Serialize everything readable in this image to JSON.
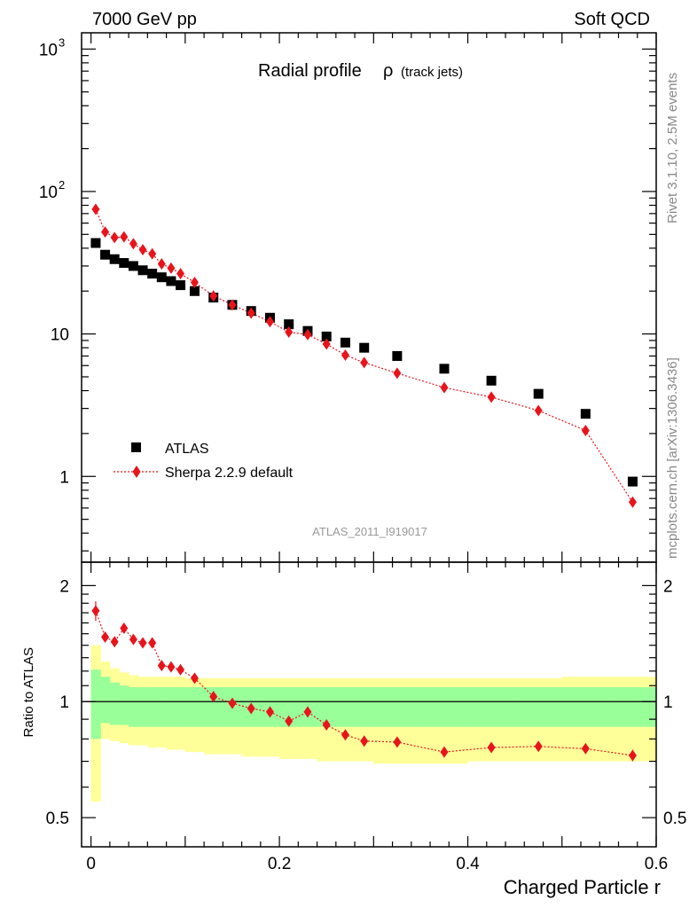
{
  "header": {
    "left": "7000 GeV pp",
    "right": "Soft QCD"
  },
  "side_text": {
    "rivet": "Rivet 3.1.10,  2.5M events",
    "mcplots": "mcplots.cern.ch [arXiv:1306.3436]"
  },
  "chart_data": {
    "type": "scatter",
    "title": "Radial profile",
    "title_symbol": "ρ",
    "title_suffix": "(track jets)",
    "analysis_tag": "ATLAS_2011_I919017",
    "xlabel": "Charged Particle r",
    "ylabel_ratio": "Ratio to ATLAS",
    "xlim": [
      -0.01,
      0.6
    ],
    "ylim_main": [
      0.25,
      1300
    ],
    "ylim_ratio": [
      0.42,
      2.3
    ],
    "yscale": "log",
    "x_ticks": [
      "0",
      "0.2",
      "0.4",
      "0.6"
    ],
    "x_tick_values": [
      0,
      0.2,
      0.4,
      0.6
    ],
    "main_y_ticks": [
      {
        "value": 1,
        "label": "1",
        "exp": ""
      },
      {
        "value": 10,
        "label": "10",
        "exp": ""
      },
      {
        "value": 100,
        "label": "10",
        "exp": "2"
      },
      {
        "value": 1000,
        "label": "10",
        "exp": "3"
      }
    ],
    "ratio_y_ticks": [
      {
        "value": 0.5,
        "label": "0.5"
      },
      {
        "value": 1,
        "label": "1"
      },
      {
        "value": 2,
        "label": "2"
      }
    ],
    "legend": {
      "position": "lower-left",
      "entries": [
        "ATLAS",
        "Sherpa 2.2.9 default"
      ]
    },
    "series": [
      {
        "name": "ATLAS",
        "marker": "square",
        "color": "#000000",
        "x": [
          0.005,
          0.015,
          0.025,
          0.035,
          0.045,
          0.055,
          0.065,
          0.075,
          0.085,
          0.095,
          0.11,
          0.13,
          0.15,
          0.17,
          0.19,
          0.21,
          0.23,
          0.25,
          0.27,
          0.29,
          0.325,
          0.375,
          0.425,
          0.475,
          0.525,
          0.575
        ],
        "y": [
          43.5,
          36,
          33.5,
          31.5,
          30,
          28,
          26.5,
          25,
          23.5,
          22,
          20,
          18,
          16,
          14.5,
          13,
          11.7,
          10.5,
          9.6,
          8.7,
          8.0,
          7.0,
          5.7,
          4.7,
          3.8,
          2.75,
          0.92
        ]
      },
      {
        "name": "Sherpa 2.2.9 default",
        "marker": "diamond",
        "color": "#e8141b",
        "x": [
          0.005,
          0.015,
          0.025,
          0.035,
          0.045,
          0.055,
          0.065,
          0.075,
          0.085,
          0.095,
          0.11,
          0.13,
          0.15,
          0.17,
          0.19,
          0.21,
          0.23,
          0.25,
          0.27,
          0.29,
          0.325,
          0.375,
          0.425,
          0.475,
          0.525,
          0.575
        ],
        "y": [
          75,
          52,
          47.5,
          48,
          43,
          39,
          36.5,
          31,
          29,
          26.5,
          23,
          18.5,
          16,
          14,
          12.2,
          10.3,
          9.9,
          8.5,
          7.1,
          6.3,
          5.3,
          4.2,
          3.6,
          2.9,
          2.1,
          0.66
        ]
      }
    ],
    "ratio": {
      "x": [
        0.005,
        0.015,
        0.025,
        0.035,
        0.045,
        0.055,
        0.065,
        0.075,
        0.085,
        0.095,
        0.11,
        0.13,
        0.15,
        0.17,
        0.19,
        0.21,
        0.23,
        0.25,
        0.27,
        0.29,
        0.325,
        0.375,
        0.425,
        0.475,
        0.525,
        0.575
      ],
      "y": [
        1.72,
        1.47,
        1.43,
        1.55,
        1.45,
        1.42,
        1.42,
        1.24,
        1.23,
        1.21,
        1.15,
        1.03,
        0.99,
        0.96,
        0.94,
        0.89,
        0.94,
        0.87,
        0.82,
        0.79,
        0.785,
        0.74,
        0.76,
        0.765,
        0.755,
        0.725
      ],
      "err": [
        0.1,
        0.04,
        0.04,
        0.04,
        0.03,
        0.03,
        0.03,
        0.025,
        0.02,
        0.02,
        0.02,
        0.01,
        0.01,
        0.01,
        0.01,
        0.01,
        0.01,
        0.01,
        0.01,
        0.01,
        0.01,
        0.01,
        0.01,
        0.01,
        0.01,
        0.025
      ]
    },
    "bands": {
      "edges": [
        0,
        0.01,
        0.02,
        0.03,
        0.04,
        0.05,
        0.06,
        0.07,
        0.08,
        0.09,
        0.1,
        0.12,
        0.14,
        0.16,
        0.18,
        0.2,
        0.22,
        0.24,
        0.26,
        0.28,
        0.3,
        0.35,
        0.4,
        0.45,
        0.5,
        0.55,
        0.6
      ],
      "green_lo": [
        0.8,
        0.88,
        0.87,
        0.87,
        0.86,
        0.86,
        0.86,
        0.86,
        0.86,
        0.86,
        0.86,
        0.86,
        0.86,
        0.86,
        0.86,
        0.86,
        0.86,
        0.86,
        0.86,
        0.86,
        0.86,
        0.86,
        0.86,
        0.86,
        0.86,
        0.86
      ],
      "green_hi": [
        1.21,
        1.16,
        1.12,
        1.1,
        1.09,
        1.09,
        1.09,
        1.09,
        1.09,
        1.09,
        1.09,
        1.09,
        1.09,
        1.09,
        1.09,
        1.09,
        1.09,
        1.09,
        1.09,
        1.09,
        1.09,
        1.09,
        1.09,
        1.09,
        1.09,
        1.09
      ],
      "yellow_lo": [
        0.55,
        0.8,
        0.79,
        0.78,
        0.77,
        0.77,
        0.76,
        0.76,
        0.75,
        0.75,
        0.74,
        0.73,
        0.73,
        0.72,
        0.72,
        0.71,
        0.71,
        0.7,
        0.7,
        0.7,
        0.69,
        0.69,
        0.7,
        0.7,
        0.7,
        0.7
      ],
      "yellow_hi": [
        1.4,
        1.27,
        1.22,
        1.19,
        1.17,
        1.16,
        1.16,
        1.16,
        1.16,
        1.16,
        1.15,
        1.15,
        1.15,
        1.15,
        1.15,
        1.15,
        1.15,
        1.15,
        1.15,
        1.15,
        1.15,
        1.15,
        1.15,
        1.15,
        1.16,
        1.16
      ]
    },
    "colors": {
      "green": "#99ff99",
      "yellow": "#ffff99",
      "sherpa": "#e8141b",
      "atlas": "#000000"
    }
  }
}
